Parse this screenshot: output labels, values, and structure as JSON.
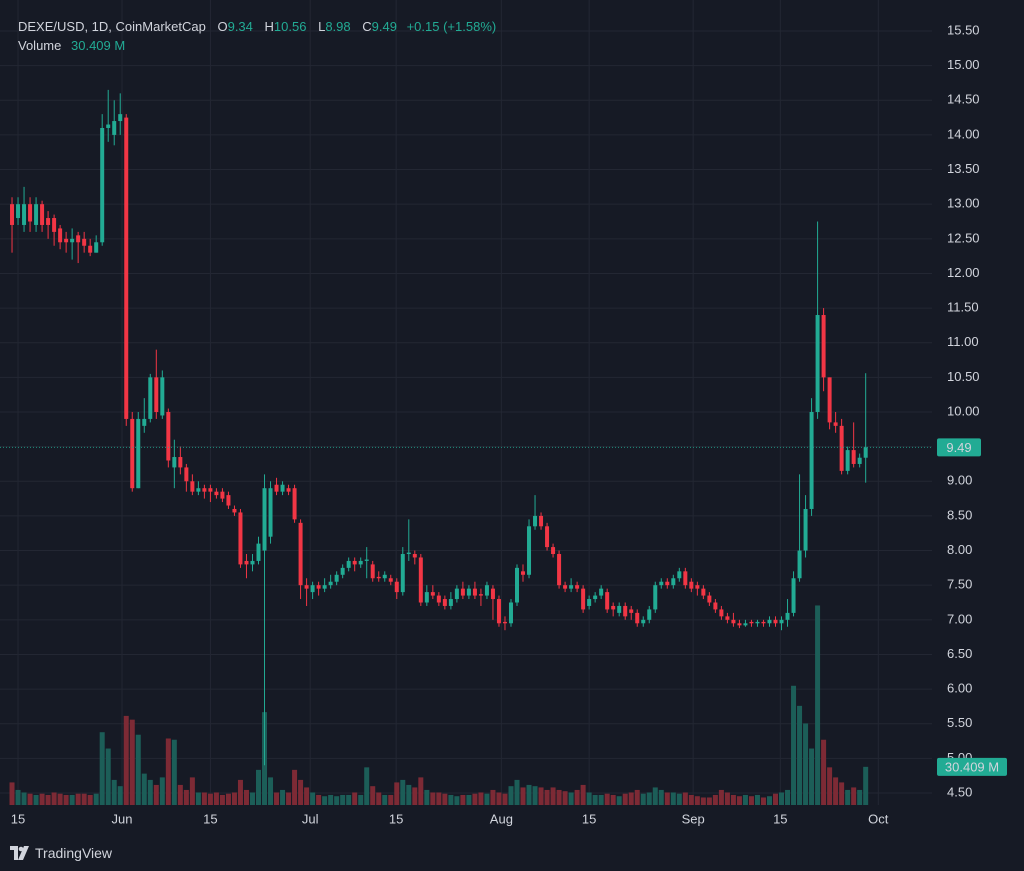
{
  "chart_data": {
    "type": "candlestick",
    "title": "DEXE/USD, 1D, CoinMarketCap",
    "ohlc_labels": [
      "O",
      "H",
      "L",
      "C"
    ],
    "change": "+0.15 (+1.58%)",
    "volume_title": "Volume",
    "last_volume_label": "30.409 M",
    "branding": "TradingView",
    "up_color": "#22ab94",
    "down_color": "#f23645",
    "volume_up_color": "#1c5e58",
    "volume_down_color": "#7d2a35",
    "grid": true,
    "ylim": [
      4.5,
      15.5
    ],
    "yticks": [
      {
        "value": 4.5,
        "label": "4.50"
      },
      {
        "value": 5,
        "label": "5.00"
      },
      {
        "value": 5.5,
        "label": "5.50"
      },
      {
        "value": 6,
        "label": "6.00"
      },
      {
        "value": 6.5,
        "label": "6.50"
      },
      {
        "value": 7,
        "label": "7.00"
      },
      {
        "value": 7.5,
        "label": "7.50"
      },
      {
        "value": 8,
        "label": "8.00"
      },
      {
        "value": 8.5,
        "label": "8.50"
      },
      {
        "value": 9,
        "label": "9.00"
      },
      {
        "value": 9.5,
        "label": "9.50"
      },
      {
        "value": 10,
        "label": "10.00"
      },
      {
        "value": 10.5,
        "label": "10.50"
      },
      {
        "value": 11,
        "label": "11.00"
      },
      {
        "value": 11.5,
        "label": "11.50"
      },
      {
        "value": 12,
        "label": "12.00"
      },
      {
        "value": 12.5,
        "label": "12.50"
      },
      {
        "value": 13,
        "label": "13.00"
      },
      {
        "value": 13.5,
        "label": "13.50"
      },
      {
        "value": 14,
        "label": "14.00"
      },
      {
        "value": 14.5,
        "label": "14.50"
      },
      {
        "value": 15,
        "label": "15.00"
      },
      {
        "value": 15.5,
        "label": "15.50"
      }
    ],
    "xlim": [
      -2,
      152.7
    ],
    "xticks": [
      {
        "value": 1,
        "label": "15"
      },
      {
        "value": 18.3,
        "label": "Jun"
      },
      {
        "value": 33,
        "label": "15"
      },
      {
        "value": 49.6,
        "label": "Jul"
      },
      {
        "value": 63.9,
        "label": "15"
      },
      {
        "value": 81.4,
        "label": "Aug"
      },
      {
        "value": 96,
        "label": "15"
      },
      {
        "value": 113.3,
        "label": "Sep"
      },
      {
        "value": 127.8,
        "label": "15"
      },
      {
        "value": 144.1,
        "label": "Oct"
      }
    ],
    "volume_ylim": [
      0,
      200
    ],
    "open": [
      13.0,
      12.8,
      12.7,
      13.0,
      12.7,
      13.0,
      12.8,
      12.8,
      12.65,
      12.5,
      12.45,
      12.55,
      12.5,
      12.4,
      12.3,
      12.45,
      14.1,
      14.0,
      14.2,
      14.25,
      9.9,
      8.9,
      9.8,
      9.9,
      10.5,
      9.95,
      10.0,
      9.2,
      9.35,
      9.2,
      9.0,
      8.85,
      8.9,
      8.9,
      8.85,
      8.85,
      8.8,
      8.6,
      8.55,
      7.85,
      7.8,
      7.85,
      8.0,
      8.2,
      8.95,
      8.85,
      8.9,
      8.9,
      8.4,
      7.5,
      7.4,
      7.5,
      7.45,
      7.5,
      7.55,
      7.65,
      7.75,
      7.85,
      7.8,
      7.85,
      7.8,
      7.62,
      7.6,
      7.6,
      7.55,
      7.4,
      7.95,
      7.95,
      7.9,
      7.25,
      7.4,
      7.35,
      7.3,
      7.2,
      7.3,
      7.45,
      7.35,
      7.45,
      7.37,
      7.35,
      7.45,
      7.3,
      6.97,
      6.95,
      7.25,
      7.7,
      7.65,
      8.35,
      8.5,
      8.35,
      8.05,
      7.95,
      7.5,
      7.45,
      7.5,
      7.45,
      7.2,
      7.3,
      7.35,
      7.4,
      7.2,
      7.1,
      7.2,
      7.15,
      7.1,
      6.95,
      7.0,
      7.15,
      7.5,
      7.55,
      7.5,
      7.6,
      7.7,
      7.55,
      7.5,
      7.45,
      7.35,
      7.25,
      7.15,
      7.05,
      7.0,
      6.95,
      6.92,
      6.97,
      6.95,
      6.97,
      6.95,
      7.0,
      6.95,
      7.0,
      7.1,
      7.6,
      8.0,
      8.6,
      10.0,
      11.4,
      10.5,
      9.85,
      9.8,
      9.15,
      9.45,
      9.25,
      9.34
    ],
    "high": [
      13.1,
      13.1,
      13.25,
      13.1,
      13.1,
      13.05,
      12.9,
      12.85,
      12.7,
      12.6,
      12.65,
      12.6,
      12.6,
      12.5,
      12.55,
      14.3,
      14.65,
      14.5,
      14.6,
      14.3,
      10.0,
      10.0,
      10.2,
      10.55,
      10.9,
      10.6,
      10.05,
      9.6,
      9.5,
      9.25,
      9.1,
      9.0,
      8.95,
      8.95,
      8.9,
      8.9,
      8.85,
      8.65,
      8.6,
      7.95,
      7.95,
      8.2,
      9.1,
      9.0,
      9.05,
      9.0,
      8.95,
      8.95,
      8.45,
      7.6,
      7.55,
      7.55,
      7.6,
      7.65,
      7.7,
      7.8,
      7.9,
      7.9,
      7.9,
      8.05,
      7.85,
      7.7,
      7.7,
      7.65,
      7.6,
      8.05,
      8.45,
      8.0,
      7.95,
      7.5,
      7.5,
      7.4,
      7.35,
      7.4,
      7.5,
      7.55,
      7.5,
      7.55,
      7.45,
      7.55,
      7.5,
      7.35,
      7.05,
      7.3,
      7.8,
      7.8,
      8.45,
      8.8,
      8.55,
      8.4,
      8.1,
      8.0,
      7.55,
      7.6,
      7.55,
      7.5,
      7.35,
      7.4,
      7.5,
      7.45,
      7.25,
      7.25,
      7.25,
      7.2,
      7.15,
      7.05,
      7.2,
      7.55,
      7.6,
      7.6,
      7.65,
      7.75,
      7.75,
      7.6,
      7.55,
      7.5,
      7.4,
      7.3,
      7.2,
      7.1,
      7.1,
      7.0,
      7.0,
      7.0,
      7.0,
      7.0,
      7.05,
      7.05,
      7.05,
      7.3,
      7.7,
      9.1,
      8.8,
      10.2,
      12.75,
      11.5,
      10.5,
      10.0,
      9.9,
      9.5,
      9.85,
      9.4,
      10.56
    ],
    "low": [
      12.3,
      12.7,
      12.6,
      12.6,
      12.6,
      12.6,
      12.5,
      12.4,
      12.35,
      12.3,
      12.2,
      12.15,
      12.3,
      12.25,
      12.3,
      12.4,
      13.9,
      13.85,
      14.0,
      9.8,
      8.85,
      8.9,
      9.7,
      9.85,
      9.9,
      9.9,
      9.2,
      8.9,
      9.1,
      8.85,
      8.8,
      8.8,
      8.75,
      8.7,
      8.75,
      8.7,
      8.6,
      8.5,
      7.75,
      7.6,
      7.7,
      7.8,
      4.9,
      8.1,
      8.8,
      8.8,
      8.8,
      8.4,
      7.3,
      7.2,
      7.3,
      7.35,
      7.4,
      7.45,
      7.5,
      7.6,
      7.7,
      7.7,
      7.75,
      7.6,
      7.55,
      7.55,
      7.55,
      7.5,
      7.3,
      7.35,
      7.85,
      7.8,
      7.2,
      7.2,
      7.3,
      7.2,
      7.15,
      7.15,
      7.25,
      7.3,
      7.3,
      7.3,
      7.2,
      7.3,
      7.0,
      6.9,
      6.85,
      6.9,
      7.2,
      7.55,
      7.6,
      8.3,
      8.3,
      8.0,
      7.9,
      7.45,
      7.4,
      7.4,
      7.4,
      7.1,
      7.15,
      7.25,
      7.3,
      7.1,
      7.05,
      7.05,
      7.0,
      7.0,
      6.9,
      6.9,
      6.95,
      7.1,
      7.45,
      7.45,
      7.45,
      7.55,
      7.45,
      7.4,
      7.35,
      7.3,
      7.2,
      7.1,
      7.0,
      6.95,
      6.9,
      6.88,
      6.9,
      6.9,
      6.9,
      6.9,
      6.9,
      6.9,
      6.85,
      6.9,
      7.05,
      7.55,
      7.9,
      8.5,
      9.9,
      10.3,
      9.75,
      9.7,
      9.1,
      9.1,
      9.2,
      9.2,
      8.98
    ],
    "close": [
      12.7,
      13.0,
      13.0,
      12.75,
      13.0,
      12.7,
      12.7,
      12.6,
      12.45,
      12.45,
      12.5,
      12.45,
      12.4,
      12.3,
      12.45,
      14.1,
      14.15,
      14.2,
      14.3,
      9.9,
      8.9,
      9.9,
      9.9,
      10.5,
      10.0,
      10.5,
      9.3,
      9.35,
      9.2,
      9.0,
      8.85,
      8.9,
      8.85,
      8.85,
      8.8,
      8.75,
      8.65,
      8.55,
      7.8,
      7.8,
      7.85,
      8.1,
      8.9,
      8.9,
      8.85,
      8.95,
      8.85,
      8.45,
      7.5,
      7.45,
      7.5,
      7.45,
      7.5,
      7.55,
      7.65,
      7.75,
      7.85,
      7.8,
      7.85,
      7.87,
      7.6,
      7.6,
      7.65,
      7.55,
      7.4,
      7.95,
      7.97,
      7.9,
      7.25,
      7.4,
      7.35,
      7.25,
      7.2,
      7.3,
      7.45,
      7.35,
      7.45,
      7.35,
      7.35,
      7.5,
      7.3,
      6.95,
      6.95,
      7.25,
      7.75,
      7.65,
      8.35,
      8.5,
      8.35,
      8.05,
      7.95,
      7.5,
      7.45,
      7.5,
      7.45,
      7.15,
      7.3,
      7.35,
      7.45,
      7.15,
      7.15,
      7.2,
      7.05,
      7.1,
      6.95,
      7.0,
      7.15,
      7.5,
      7.55,
      7.5,
      7.6,
      7.7,
      7.5,
      7.45,
      7.45,
      7.35,
      7.25,
      7.15,
      7.05,
      7.0,
      6.95,
      6.92,
      6.95,
      6.95,
      6.97,
      6.95,
      7.0,
      6.95,
      7.0,
      7.1,
      7.6,
      8.0,
      8.6,
      10.0,
      11.4,
      10.5,
      9.85,
      9.8,
      9.15,
      9.45,
      9.25,
      9.34,
      9.49
    ],
    "volume": [
      18,
      12,
      10,
      9,
      8,
      9,
      8,
      10,
      9,
      8,
      8,
      9,
      9,
      8,
      9,
      58,
      45,
      20,
      15,
      71,
      68,
      56,
      25,
      20,
      16,
      22,
      53,
      52,
      16,
      12,
      22,
      10,
      10,
      9,
      10,
      8,
      9,
      10,
      20,
      12,
      10,
      28,
      74,
      22,
      10,
      12,
      10,
      28,
      20,
      14,
      10,
      8,
      7,
      8,
      7,
      8,
      8,
      10,
      8,
      30,
      15,
      10,
      8,
      8,
      18,
      20,
      16,
      14,
      22,
      12,
      10,
      10,
      9,
      8,
      7,
      8,
      8,
      9,
      10,
      9,
      12,
      10,
      9,
      15,
      20,
      14,
      16,
      15,
      14,
      12,
      14,
      12,
      11,
      10,
      12,
      16,
      10,
      8,
      8,
      9,
      8,
      7,
      9,
      10,
      12,
      9,
      10,
      14,
      12,
      10,
      10,
      9,
      10,
      8,
      7,
      6,
      6,
      8,
      12,
      10,
      8,
      7,
      8,
      7,
      8,
      6,
      7,
      9,
      10,
      12,
      95,
      79,
      65,
      45,
      159,
      52,
      30,
      22,
      18,
      12,
      14,
      12,
      30.409
    ]
  }
}
